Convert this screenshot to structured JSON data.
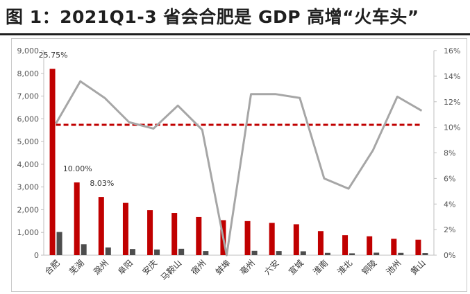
{
  "title": "图 1：2021Q1-3 省会合肥是 GDP 高增“火车头”",
  "chart_data": {
    "type": "bar",
    "categories": [
      "合肥",
      "芜湖",
      "滁州",
      "阜阳",
      "安庆",
      "马鞍山",
      "宿州",
      "蚌埠",
      "亳州",
      "六安",
      "宣城",
      "淮南",
      "淮北",
      "铜陵",
      "池州",
      "黄山"
    ],
    "series": [
      {
        "kind": "bar",
        "axis": "left",
        "color": "#c00000",
        "values": [
          8200,
          3200,
          2560,
          2300,
          1980,
          1860,
          1680,
          1540,
          1500,
          1420,
          1360,
          1060,
          880,
          830,
          720,
          680
        ]
      },
      {
        "kind": "bar",
        "axis": "left",
        "color": "#4d4d4d",
        "values": [
          1020,
          480,
          340,
          270,
          250,
          280,
          180,
          0,
          190,
          180,
          170,
          100,
          80,
          110,
          100,
          90
        ]
      },
      {
        "kind": "line",
        "axis": "right",
        "color": "#a6a6a6",
        "values": [
          0.103,
          0.136,
          0.123,
          0.104,
          0.099,
          0.117,
          0.098,
          0.0,
          0.126,
          0.126,
          0.123,
          0.06,
          0.052,
          0.082,
          0.124,
          0.113
        ]
      },
      {
        "kind": "reference-line",
        "axis": "right",
        "color": "#c00000",
        "style": "dashed",
        "value": 0.102
      }
    ],
    "data_labels": [
      {
        "category": "合肥",
        "text": "25.75%"
      },
      {
        "category": "芜湖",
        "text": "10.00%"
      },
      {
        "category": "滁州",
        "text": "8.03%"
      }
    ],
    "y_left": {
      "lim": [
        0,
        9000
      ],
      "ticks": [
        "0",
        "1,000",
        "2,000",
        "3,000",
        "4,000",
        "5,000",
        "6,000",
        "7,000",
        "8,000",
        "9,000"
      ]
    },
    "y_right": {
      "lim": [
        0,
        0.16
      ],
      "ticks": [
        "0%",
        "2%",
        "4%",
        "6%",
        "8%",
        "10%",
        "12%",
        "14%",
        "16%"
      ]
    },
    "grid": false,
    "legend": "none"
  }
}
